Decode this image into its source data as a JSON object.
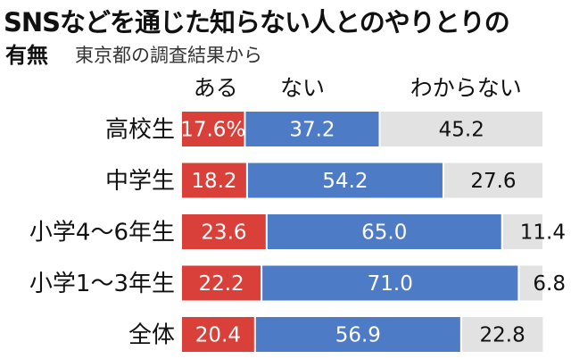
{
  "title": {
    "line1": "SNSなどを通じた知らない人とのやりとりの",
    "line2": "有無",
    "subtitle": "東京都の調査結果から"
  },
  "colors": {
    "aru": "#d9403a",
    "nai": "#4d7bc6",
    "wakaranai": "#e2e2e2",
    "text_dark": "#111111",
    "text_light": "#ffffff"
  },
  "chart_data": {
    "type": "bar",
    "orientation": "horizontal",
    "stacked": true,
    "percent": true,
    "title": "SNSなどを通じた知らない人とのやりとりの有無",
    "subtitle": "東京都の調査結果から",
    "categories": [
      "高校生",
      "中学生",
      "小学4～6年生",
      "小学1～3年生",
      "全体"
    ],
    "series": [
      {
        "name": "ある",
        "values": [
          17.6,
          18.2,
          23.6,
          22.2,
          20.4
        ],
        "labels": [
          "17.6%",
          "18.2",
          "23.6",
          "22.2",
          "20.4"
        ]
      },
      {
        "name": "ない",
        "values": [
          37.2,
          54.2,
          65.0,
          71.0,
          56.9
        ],
        "labels": [
          "37.2",
          "54.2",
          "65.0",
          "71.0",
          "56.9"
        ]
      },
      {
        "name": "わからない",
        "values": [
          45.2,
          27.6,
          11.4,
          6.8,
          22.8
        ],
        "labels": [
          "45.2",
          "27.6",
          "11.4",
          "6.8",
          "22.8"
        ]
      }
    ],
    "xlim": [
      0,
      100
    ],
    "legend": "top"
  }
}
